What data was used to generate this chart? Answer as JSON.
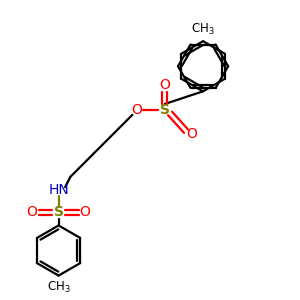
{
  "bg_color": "#ffffff",
  "bond_color": "#000000",
  "o_color": "#ff0000",
  "n_color": "#0000cc",
  "s_color": "#808000",
  "line_width": 1.6,
  "figsize": [
    3.0,
    3.0
  ],
  "dpi": 100,
  "xlim": [
    0,
    10
  ],
  "ylim": [
    0,
    10
  ]
}
